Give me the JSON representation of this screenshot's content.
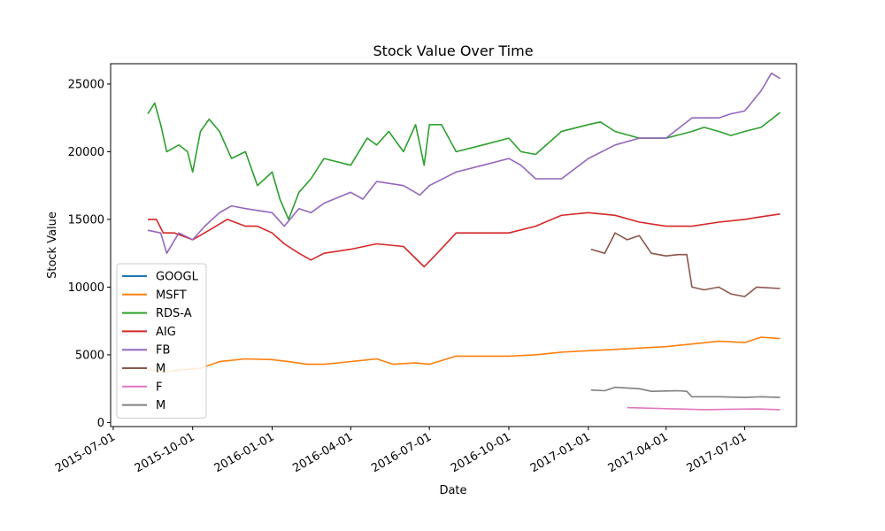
{
  "chart_data": {
    "type": "line",
    "title": "Stock Value Over Time",
    "xlabel": "Date",
    "ylabel": "Stock Value",
    "xlim": [
      "2015-06-28",
      "2017-08-30"
    ],
    "ylim": [
      -300,
      26500
    ],
    "x_ticks": [
      "2015-07-01",
      "2015-10-01",
      "2016-01-01",
      "2016-04-01",
      "2016-07-01",
      "2016-10-01",
      "2017-01-01",
      "2017-04-01",
      "2017-07-01"
    ],
    "y_ticks": [
      0,
      5000,
      10000,
      15000,
      20000,
      25000
    ],
    "grid": false,
    "legend_position": "lower-left",
    "series": [
      {
        "name": "GOOGL",
        "color": "#1f77b4",
        "points": []
      },
      {
        "name": "MSFT",
        "color": "#ff7f0e",
        "points": [
          [
            "2015-08-10",
            3900
          ],
          [
            "2015-09-01",
            3750
          ],
          [
            "2015-09-20",
            3900
          ],
          [
            "2015-10-10",
            4000
          ],
          [
            "2015-11-01",
            4500
          ],
          [
            "2015-12-01",
            4700
          ],
          [
            "2015-12-31",
            4650
          ],
          [
            "2016-01-20",
            4500
          ],
          [
            "2016-02-10",
            4300
          ],
          [
            "2016-03-01",
            4300
          ],
          [
            "2016-04-01",
            4500
          ],
          [
            "2016-05-01",
            4700
          ],
          [
            "2016-05-20",
            4300
          ],
          [
            "2016-06-15",
            4400
          ],
          [
            "2016-07-01",
            4300
          ],
          [
            "2016-08-01",
            4900
          ],
          [
            "2016-09-01",
            4900
          ],
          [
            "2016-10-01",
            4900
          ],
          [
            "2016-11-01",
            5000
          ],
          [
            "2016-12-01",
            5200
          ],
          [
            "2017-01-01",
            5300
          ],
          [
            "2017-02-01",
            5400
          ],
          [
            "2017-03-01",
            5500
          ],
          [
            "2017-04-01",
            5600
          ],
          [
            "2017-05-01",
            5800
          ],
          [
            "2017-06-01",
            6000
          ],
          [
            "2017-07-01",
            5900
          ],
          [
            "2017-07-20",
            6300
          ],
          [
            "2017-08-11",
            6200
          ]
        ]
      },
      {
        "name": "RDS-A",
        "color": "#2ca02c",
        "points": [
          [
            "2015-08-10",
            22800
          ],
          [
            "2015-08-18",
            23600
          ],
          [
            "2015-08-25",
            22000
          ],
          [
            "2015-09-01",
            20000
          ],
          [
            "2015-09-15",
            20500
          ],
          [
            "2015-09-25",
            20000
          ],
          [
            "2015-10-01",
            18500
          ],
          [
            "2015-10-10",
            21500
          ],
          [
            "2015-10-20",
            22400
          ],
          [
            "2015-11-01",
            21500
          ],
          [
            "2015-11-15",
            19500
          ],
          [
            "2015-12-01",
            20000
          ],
          [
            "2015-12-15",
            17500
          ],
          [
            "2016-01-01",
            18500
          ],
          [
            "2016-01-10",
            16500
          ],
          [
            "2016-01-20",
            15000
          ],
          [
            "2016-02-01",
            17000
          ],
          [
            "2016-02-15",
            18000
          ],
          [
            "2016-03-01",
            19500
          ],
          [
            "2016-04-01",
            19000
          ],
          [
            "2016-04-20",
            21000
          ],
          [
            "2016-05-01",
            20500
          ],
          [
            "2016-05-15",
            21500
          ],
          [
            "2016-06-01",
            20000
          ],
          [
            "2016-06-15",
            22000
          ],
          [
            "2016-06-25",
            19000
          ],
          [
            "2016-07-01",
            22000
          ],
          [
            "2016-07-15",
            22000
          ],
          [
            "2016-08-01",
            20000
          ],
          [
            "2016-09-01",
            20500
          ],
          [
            "2016-10-01",
            21000
          ],
          [
            "2016-10-15",
            20000
          ],
          [
            "2016-11-01",
            19800
          ],
          [
            "2016-12-01",
            21500
          ],
          [
            "2017-01-01",
            22000
          ],
          [
            "2017-01-15",
            22200
          ],
          [
            "2017-02-01",
            21500
          ],
          [
            "2017-03-01",
            21000
          ],
          [
            "2017-04-01",
            21000
          ],
          [
            "2017-05-01",
            21500
          ],
          [
            "2017-05-15",
            21800
          ],
          [
            "2017-06-01",
            21500
          ],
          [
            "2017-06-15",
            21200
          ],
          [
            "2017-07-01",
            21500
          ],
          [
            "2017-07-20",
            21800
          ],
          [
            "2017-08-11",
            22900
          ]
        ]
      },
      {
        "name": "AIG",
        "color": "#d62728",
        "points": [
          [
            "2015-08-10",
            15000
          ],
          [
            "2015-08-20",
            15000
          ],
          [
            "2015-08-28",
            14000
          ],
          [
            "2015-09-10",
            14000
          ],
          [
            "2015-10-01",
            13500
          ],
          [
            "2015-10-20",
            14200
          ],
          [
            "2015-11-10",
            15000
          ],
          [
            "2015-12-01",
            14500
          ],
          [
            "2015-12-15",
            14500
          ],
          [
            "2016-01-01",
            14000
          ],
          [
            "2016-01-15",
            13200
          ],
          [
            "2016-02-01",
            12500
          ],
          [
            "2016-02-15",
            12000
          ],
          [
            "2016-03-01",
            12500
          ],
          [
            "2016-04-01",
            12800
          ],
          [
            "2016-05-01",
            13200
          ],
          [
            "2016-06-01",
            13000
          ],
          [
            "2016-06-25",
            11500
          ],
          [
            "2016-07-10",
            12500
          ],
          [
            "2016-08-01",
            14000
          ],
          [
            "2016-09-01",
            14000
          ],
          [
            "2016-10-01",
            14000
          ],
          [
            "2016-11-01",
            14500
          ],
          [
            "2016-12-01",
            15300
          ],
          [
            "2017-01-01",
            15500
          ],
          [
            "2017-02-01",
            15300
          ],
          [
            "2017-03-01",
            14800
          ],
          [
            "2017-04-01",
            14500
          ],
          [
            "2017-05-01",
            14500
          ],
          [
            "2017-06-01",
            14800
          ],
          [
            "2017-07-01",
            15000
          ],
          [
            "2017-07-20",
            15200
          ],
          [
            "2017-08-11",
            15400
          ]
        ]
      },
      {
        "name": "FB",
        "color": "#9467bd",
        "points": [
          [
            "2015-08-10",
            14200
          ],
          [
            "2015-08-25",
            14000
          ],
          [
            "2015-09-01",
            12500
          ],
          [
            "2015-09-15",
            14000
          ],
          [
            "2015-10-01",
            13500
          ],
          [
            "2015-10-15",
            14500
          ],
          [
            "2015-11-01",
            15500
          ],
          [
            "2015-11-15",
            16000
          ],
          [
            "2015-12-01",
            15800
          ],
          [
            "2016-01-01",
            15500
          ],
          [
            "2016-01-15",
            14500
          ],
          [
            "2016-02-01",
            15800
          ],
          [
            "2016-02-15",
            15500
          ],
          [
            "2016-03-01",
            16200
          ],
          [
            "2016-04-01",
            17000
          ],
          [
            "2016-04-15",
            16500
          ],
          [
            "2016-05-01",
            17800
          ],
          [
            "2016-06-01",
            17500
          ],
          [
            "2016-06-20",
            16800
          ],
          [
            "2016-07-01",
            17500
          ],
          [
            "2016-08-01",
            18500
          ],
          [
            "2016-09-01",
            19000
          ],
          [
            "2016-10-01",
            19500
          ],
          [
            "2016-10-15",
            19000
          ],
          [
            "2016-11-01",
            18000
          ],
          [
            "2016-12-01",
            18000
          ],
          [
            "2017-01-01",
            19500
          ],
          [
            "2017-02-01",
            20500
          ],
          [
            "2017-03-01",
            21000
          ],
          [
            "2017-04-01",
            21000
          ],
          [
            "2017-05-01",
            22500
          ],
          [
            "2017-06-01",
            22500
          ],
          [
            "2017-06-15",
            22800
          ],
          [
            "2017-07-01",
            23000
          ],
          [
            "2017-07-20",
            24500
          ],
          [
            "2017-08-01",
            25800
          ],
          [
            "2017-08-11",
            25400
          ]
        ]
      },
      {
        "name": "M",
        "color": "#8c564b",
        "points": [
          [
            "2017-01-04",
            12800
          ],
          [
            "2017-01-20",
            12500
          ],
          [
            "2017-02-01",
            14000
          ],
          [
            "2017-02-15",
            13500
          ],
          [
            "2017-03-01",
            13800
          ],
          [
            "2017-03-15",
            12500
          ],
          [
            "2017-04-01",
            12300
          ],
          [
            "2017-04-15",
            12400
          ],
          [
            "2017-04-25",
            12400
          ],
          [
            "2017-05-01",
            10000
          ],
          [
            "2017-05-15",
            9800
          ],
          [
            "2017-06-01",
            10000
          ],
          [
            "2017-06-15",
            9500
          ],
          [
            "2017-07-01",
            9300
          ],
          [
            "2017-07-15",
            10000
          ],
          [
            "2017-08-11",
            9900
          ]
        ]
      },
      {
        "name": "F",
        "color": "#e377c2",
        "points": [
          [
            "2017-02-15",
            1100
          ],
          [
            "2017-03-15",
            1050
          ],
          [
            "2017-04-15",
            1000
          ],
          [
            "2017-05-15",
            950
          ],
          [
            "2017-06-15",
            980
          ],
          [
            "2017-07-15",
            1000
          ],
          [
            "2017-08-11",
            950
          ]
        ]
      },
      {
        "name": "M",
        "color": "#7f7f7f",
        "points": [
          [
            "2017-01-04",
            2400
          ],
          [
            "2017-01-20",
            2350
          ],
          [
            "2017-02-01",
            2600
          ],
          [
            "2017-02-15",
            2550
          ],
          [
            "2017-03-01",
            2500
          ],
          [
            "2017-03-15",
            2300
          ],
          [
            "2017-04-15",
            2350
          ],
          [
            "2017-04-25",
            2300
          ],
          [
            "2017-05-01",
            1900
          ],
          [
            "2017-06-01",
            1900
          ],
          [
            "2017-07-01",
            1850
          ],
          [
            "2017-07-20",
            1900
          ],
          [
            "2017-08-11",
            1850
          ]
        ]
      }
    ]
  }
}
